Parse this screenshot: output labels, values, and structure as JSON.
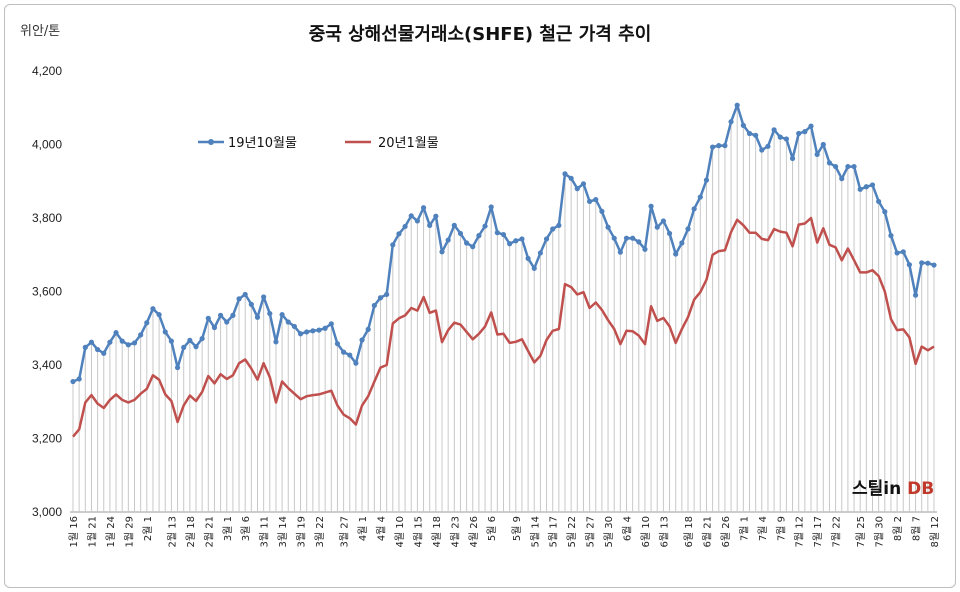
{
  "chart_data": {
    "type": "line",
    "title": "중국 상해선물거래소(SHFE)  철근 가격 추이",
    "ylabel": "위안/톤",
    "ylim": [
      3000,
      4200
    ],
    "yticks": [
      "3,000",
      "3,200",
      "3,400",
      "3,600",
      "3,800",
      "4,000",
      "4,200"
    ],
    "grid": false,
    "legend": "upper-left",
    "x_tick_labels": [
      "1월 16",
      "1월 21",
      "1월 24",
      "1월 29",
      "2월 1",
      "2월 13",
      "2월 18",
      "2월 21",
      "3월 1",
      "3월 6",
      "3월 11",
      "3월 14",
      "3월 19",
      "3월 22",
      "3월 27",
      "4월 1",
      "4월 4",
      "4월 10",
      "4월 15",
      "4월 18",
      "4월 23",
      "4월 26",
      "5월 6",
      "5월 9",
      "5월 14",
      "5월 17",
      "5월 22",
      "5월 27",
      "5월 30",
      "6월 4",
      "6월 10",
      "6월 13",
      "6월 18",
      "6월 21",
      "6월 26",
      "7월 1",
      "7월 4",
      "7월 9",
      "7월 12",
      "7월 17",
      "7월 22",
      "7월 25",
      "7월 30",
      "8월 2",
      "8월 7",
      "8월 12"
    ],
    "series": [
      {
        "name": "19년10월물",
        "color": "#4f81bd",
        "values": [
          3355,
          3362,
          3448,
          3462,
          3442,
          3432,
          3462,
          3488,
          3465,
          3455,
          3460,
          3482,
          3515,
          3553,
          3537,
          3490,
          3465,
          3393,
          3448,
          3467,
          3450,
          3472,
          3527,
          3502,
          3535,
          3517,
          3535,
          3580,
          3592,
          3565,
          3530,
          3585,
          3540,
          3463,
          3537,
          3517,
          3505,
          3485,
          3490,
          3493,
          3495,
          3500,
          3512,
          3458,
          3435,
          3427,
          3405,
          3468,
          3497,
          3562,
          3583,
          3592,
          3727,
          3757,
          3777,
          3806,
          3792,
          3828,
          3780,
          3805,
          3708,
          3740,
          3780,
          3758,
          3732,
          3722,
          3752,
          3778,
          3830,
          3760,
          3755,
          3730,
          3738,
          3743,
          3690,
          3663,
          3705,
          3743,
          3770,
          3780,
          3920,
          3908,
          3880,
          3893,
          3845,
          3850,
          3818,
          3775,
          3745,
          3707,
          3745,
          3745,
          3735,
          3715,
          3832,
          3775,
          3792,
          3758,
          3702,
          3732,
          3770,
          3825,
          3857,
          3903,
          3993,
          3997,
          3997,
          4062,
          4107,
          4052,
          4030,
          4025,
          3985,
          3995,
          4040,
          4020,
          4015,
          3962,
          4030,
          4035,
          4050,
          3973,
          4000,
          3950,
          3940,
          3907,
          3940,
          3940,
          3878,
          3885,
          3890,
          3845,
          3817,
          3752,
          3705,
          3708,
          3673,
          3590,
          3678,
          3677,
          3672
        ]
      },
      {
        "name": "20년1월물",
        "color": "#c0504d",
        "values": [
          3205,
          3225,
          3298,
          3318,
          3295,
          3283,
          3305,
          3320,
          3305,
          3298,
          3305,
          3322,
          3335,
          3372,
          3360,
          3320,
          3302,
          3245,
          3290,
          3317,
          3302,
          3327,
          3370,
          3350,
          3375,
          3362,
          3372,
          3405,
          3415,
          3390,
          3360,
          3405,
          3367,
          3298,
          3355,
          3337,
          3322,
          3307,
          3315,
          3318,
          3320,
          3325,
          3330,
          3290,
          3265,
          3255,
          3238,
          3290,
          3315,
          3355,
          3393,
          3400,
          3513,
          3527,
          3535,
          3555,
          3548,
          3585,
          3542,
          3548,
          3462,
          3495,
          3515,
          3510,
          3490,
          3470,
          3485,
          3505,
          3543,
          3483,
          3485,
          3460,
          3463,
          3470,
          3438,
          3407,
          3425,
          3468,
          3493,
          3498,
          3620,
          3612,
          3592,
          3598,
          3555,
          3570,
          3550,
          3522,
          3498,
          3457,
          3493,
          3492,
          3480,
          3457,
          3560,
          3520,
          3528,
          3505,
          3460,
          3498,
          3530,
          3578,
          3598,
          3632,
          3700,
          3710,
          3712,
          3762,
          3795,
          3780,
          3760,
          3760,
          3743,
          3740,
          3770,
          3763,
          3760,
          3723,
          3782,
          3785,
          3800,
          3733,
          3772,
          3727,
          3720,
          3685,
          3717,
          3685,
          3652,
          3652,
          3658,
          3642,
          3600,
          3525,
          3495,
          3497,
          3475,
          3403,
          3450,
          3440,
          3450
        ]
      }
    ]
  },
  "logo": {
    "text_main": "스틸in",
    "text_accent": " DB"
  }
}
